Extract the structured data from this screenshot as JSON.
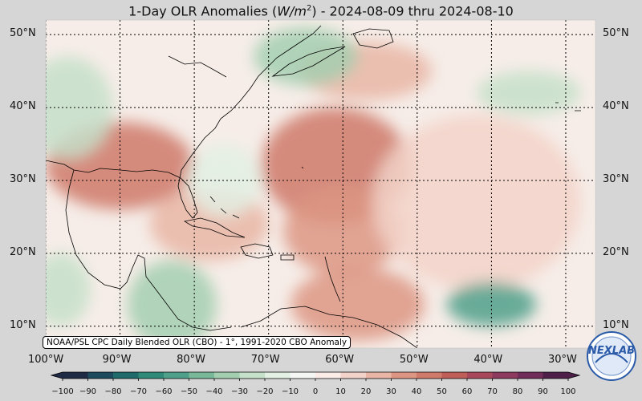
{
  "title": {
    "prefix": "1-Day OLR Anomalies (",
    "unit_italic": "W/m",
    "unit_sup": "2",
    "suffix": ") - 2024-08-09 thru 2024-08-10"
  },
  "source_note": "NOAA/PSL CPC Daily Blended OLR (CBO) - 1°, 1991-2020 CBO Anomaly",
  "logo": {
    "text": "NEXLAB",
    "icon": "psl-logo-icon"
  },
  "latitudes": [
    {
      "value": 50,
      "label": "50°N"
    },
    {
      "value": 40,
      "label": "40°N"
    },
    {
      "value": 30,
      "label": "30°N"
    },
    {
      "value": 20,
      "label": "20°N"
    },
    {
      "value": 10,
      "label": "10°N"
    }
  ],
  "longitudes": [
    {
      "value": -100,
      "label": "100°W"
    },
    {
      "value": -90,
      "label": "90°W"
    },
    {
      "value": -80,
      "label": "80°W"
    },
    {
      "value": -70,
      "label": "70°W"
    },
    {
      "value": -60,
      "label": "60°W"
    },
    {
      "value": -50,
      "label": "50°W"
    },
    {
      "value": -40,
      "label": "40°W"
    },
    {
      "value": -30,
      "label": "30°W"
    }
  ],
  "colorbar": {
    "min": -100,
    "max": 100,
    "ticks": [
      -100,
      -90,
      -80,
      -70,
      -60,
      -50,
      -40,
      -30,
      -20,
      -10,
      0,
      10,
      20,
      30,
      40,
      50,
      60,
      70,
      80,
      90,
      100
    ],
    "tick_labels": [
      "−100",
      "−90",
      "−80",
      "−70",
      "−60",
      "−50",
      "−40",
      "−30",
      "−20",
      "−10",
      "0",
      "10",
      "20",
      "30",
      "40",
      "50",
      "60",
      "70",
      "80",
      "90",
      "100"
    ],
    "colors": [
      "#1f2a44",
      "#1d4a5c",
      "#1f6b6b",
      "#2f8a7a",
      "#4fa08a",
      "#79b99a",
      "#a3cfb0",
      "#c6e1ca",
      "#e3f0e4",
      "#f5f7f5",
      "#fbece8",
      "#f3d3c9",
      "#e9b6a6",
      "#dd9684",
      "#cf7a6a",
      "#bf5e58",
      "#a8485a",
      "#8e3a5e",
      "#702d5a",
      "#4e2049"
    ]
  },
  "map": {
    "lon_range": [
      -100,
      -26
    ],
    "lat_range": [
      7,
      52
    ],
    "gridlines": "dotted",
    "anomaly_field": [
      {
        "lon": -90,
        "lat": 32,
        "anom": 40,
        "rx": 10,
        "ry": 6
      },
      {
        "lon": -61,
        "lat": 32,
        "anom": 45,
        "rx": 10,
        "ry": 8
      },
      {
        "lon": -60,
        "lat": 23,
        "anom": 35,
        "rx": 8,
        "ry": 6
      },
      {
        "lon": -58,
        "lat": 13,
        "anom": 30,
        "rx": 9,
        "ry": 5
      },
      {
        "lon": -57,
        "lat": 45,
        "anom": 25,
        "rx": 9,
        "ry": 4
      },
      {
        "lon": -42,
        "lat": 27,
        "anom": 15,
        "rx": 14,
        "ry": 12
      },
      {
        "lon": -78,
        "lat": 24,
        "anom": 25,
        "rx": 8,
        "ry": 5
      },
      {
        "lon": -40,
        "lat": 13,
        "anom": -55,
        "rx": 6,
        "ry": 3
      },
      {
        "lon": -83,
        "lat": 13,
        "anom": -35,
        "rx": 6,
        "ry": 6
      },
      {
        "lon": -65,
        "lat": 47,
        "anom": -35,
        "rx": 7,
        "ry": 4
      },
      {
        "lon": -35,
        "lat": 42,
        "anom": -30,
        "rx": 7,
        "ry": 3
      },
      {
        "lon": -97,
        "lat": 40,
        "anom": -30,
        "rx": 6,
        "ry": 7
      },
      {
        "lon": -98,
        "lat": 15,
        "anom": -30,
        "rx": 4,
        "ry": 5
      },
      {
        "lon": -76,
        "lat": 30,
        "anom": -15,
        "rx": 5,
        "ry": 5
      }
    ]
  }
}
